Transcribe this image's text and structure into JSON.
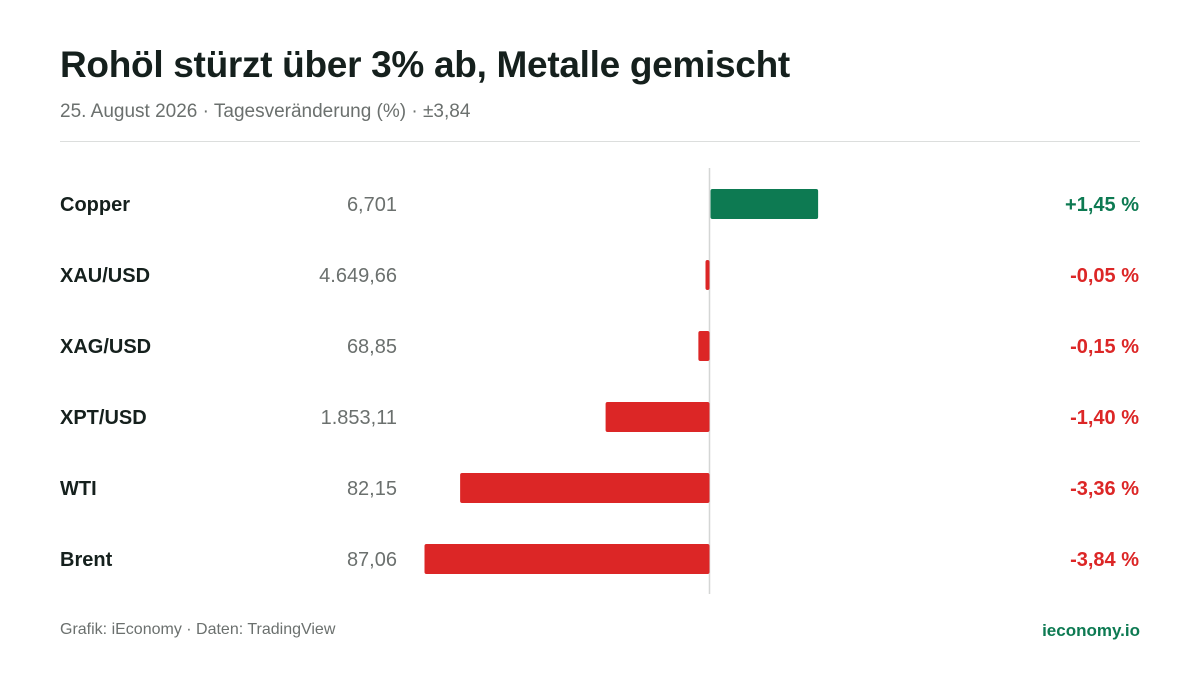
{
  "header": {
    "title": "Rohöl stürzt über 3% ab, Metalle gemischt",
    "subtitle": "25. August 2026 · Tagesveränderung (%) · ±3,84"
  },
  "colors": {
    "positive": "#0d7a52",
    "negative": "#dc2626",
    "axis": "#d4d6d5"
  },
  "chart_data": {
    "type": "bar",
    "orientation": "horizontal",
    "title": "Rohöl stürzt über 3% ab, Metalle gemischt",
    "subtitle": "25. August 2026 · Tagesveränderung (%) · ±3,84",
    "xlim": [
      -3.84,
      3.84
    ],
    "rows": [
      {
        "name": "Copper",
        "price": "6,701",
        "change": 1.45,
        "change_label": "+1,45 %"
      },
      {
        "name": "XAU/USD",
        "price": "4.649,66",
        "change": -0.05,
        "change_label": "-0,05 %"
      },
      {
        "name": "XAG/USD",
        "price": "68,85",
        "change": -0.15,
        "change_label": "-0,15 %"
      },
      {
        "name": "XPT/USD",
        "price": "1.853,11",
        "change": -1.4,
        "change_label": "-1,40 %"
      },
      {
        "name": "WTI",
        "price": "82,15",
        "change": -3.36,
        "change_label": "-3,36 %"
      },
      {
        "name": "Brent",
        "price": "87,06",
        "change": -3.84,
        "change_label": "-3,84 %"
      }
    ]
  },
  "footer": {
    "source": "Grafik: iEconomy · Daten: TradingView",
    "brand": "ieconomy.io"
  }
}
